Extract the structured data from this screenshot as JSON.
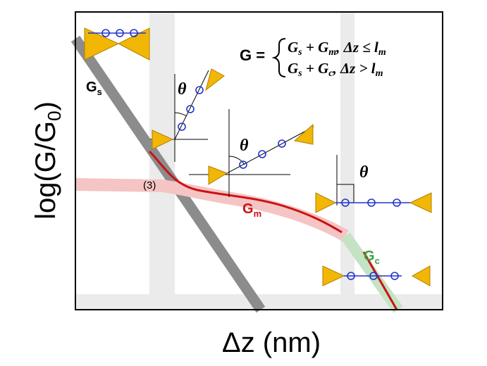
{
  "axes": {
    "x_label": "Δz (nm)",
    "y_label_start": "log(G/G",
    "y_label_sub": "0",
    "y_label_end": ")"
  },
  "curves": {
    "gs": {
      "label": "G",
      "sub": "s"
    },
    "gm": {
      "label": "G",
      "sub": "m"
    },
    "gc": {
      "label": "G",
      "sub": "c"
    }
  },
  "annotation": "(3)",
  "angles": [
    "θ",
    "θ",
    "θ"
  ],
  "equation": {
    "lhs": "G =",
    "case1": "G",
    "case1_sub1": "s",
    "case1_mid": " + G",
    "case1_sub2": "m",
    "case1_cond": ",  Δz ≤ l",
    "case1_cond_sub": "m",
    "case2": "G",
    "case2_sub1": "s",
    "case2_mid": " + G",
    "case2_sub2": "c",
    "case2_cond": ",   Δz > l",
    "case2_cond_sub": "m"
  }
}
